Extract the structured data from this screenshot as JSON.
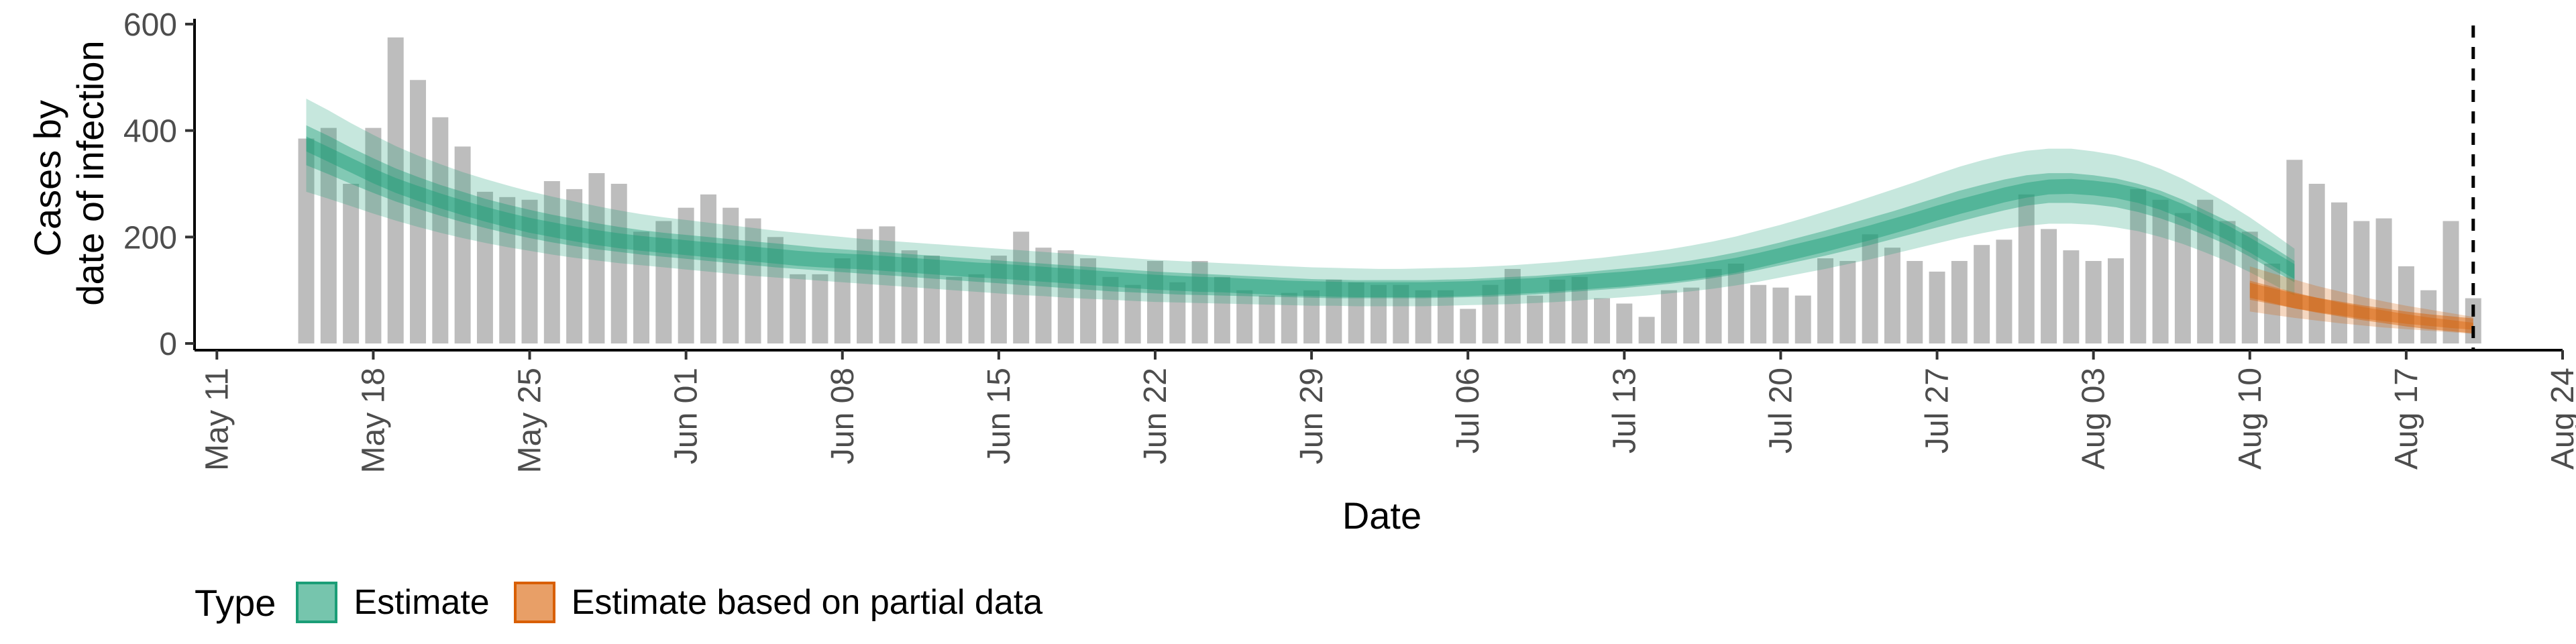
{
  "colors": {
    "bars": "#bdbdbd",
    "estimate": "#1b9e77",
    "partial": "#d95f02"
  },
  "chart_data": {
    "type": "bar",
    "title": "",
    "xlabel": "Date",
    "ylabel_lines": [
      "Cases by",
      "date of infection"
    ],
    "ylim": [
      0,
      610
    ],
    "yticks": [
      0,
      200,
      400,
      600
    ],
    "xlim": [
      "2020-05-10",
      "2020-08-24"
    ],
    "xtick_dates": [
      "2020-05-11",
      "2020-05-18",
      "2020-05-25",
      "2020-06-01",
      "2020-06-08",
      "2020-06-15",
      "2020-06-22",
      "2020-06-29",
      "2020-07-06",
      "2020-07-13",
      "2020-07-20",
      "2020-07-27",
      "2020-08-03",
      "2020-08-10",
      "2020-08-17",
      "2020-08-24"
    ],
    "xtick_labels": [
      "May 11",
      "May 18",
      "May 25",
      "Jun 01",
      "Jun 08",
      "Jun 15",
      "Jun 22",
      "Jun 29",
      "Jul 06",
      "Jul 13",
      "Jul 20",
      "Jul 27",
      "Aug 03",
      "Aug 10",
      "Aug 17",
      "Aug 24"
    ],
    "vline_date": "2020-08-20",
    "bar_start_date": "2020-05-15",
    "bar_values": [
      385,
      405,
      300,
      405,
      575,
      495,
      425,
      370,
      285,
      275,
      270,
      305,
      290,
      320,
      300,
      210,
      230,
      255,
      280,
      255,
      235,
      200,
      130,
      130,
      160,
      215,
      220,
      175,
      165,
      125,
      130,
      165,
      210,
      180,
      175,
      160,
      125,
      110,
      155,
      115,
      155,
      125,
      100,
      90,
      95,
      100,
      120,
      115,
      110,
      110,
      100,
      100,
      65,
      110,
      140,
      90,
      120,
      125,
      85,
      75,
      50,
      100,
      105,
      140,
      150,
      110,
      105,
      90,
      160,
      155,
      205,
      180,
      155,
      135,
      155,
      185,
      195,
      280,
      215,
      175,
      155,
      160,
      290,
      270,
      245,
      270,
      230,
      210,
      150,
      345,
      300,
      265,
      230,
      235,
      145,
      100,
      230,
      85
    ],
    "series": [
      {
        "name": "Estimate",
        "start_date": "2020-05-15",
        "median": [
          375,
          355,
          335,
          315,
          297,
          282,
          268,
          255,
          243,
          232,
          222,
          214,
          206,
          199,
          193,
          188,
          184,
          180,
          176,
          172,
          168,
          164,
          160,
          157,
          155,
          153,
          150,
          147,
          144,
          141,
          138,
          136,
          133,
          130,
          127,
          124,
          121,
          118,
          115,
          113,
          111,
          110,
          108,
          106,
          104,
          103,
          102,
          101,
          101,
          101,
          101,
          102,
          103,
          105,
          107,
          109,
          112,
          115,
          118,
          121,
          125,
          129,
          134,
          140,
          147,
          156,
          166,
          176,
          186,
          197,
          208,
          220,
          232,
          245,
          257,
          268,
          279,
          288,
          294,
          295,
          292,
          287,
          278,
          265,
          248,
          228,
          208,
          185,
          160,
          135
        ],
        "inner_lo": [
          335,
          318,
          300,
          283,
          267,
          253,
          240,
          228,
          217,
          207,
          198,
          190,
          183,
          177,
          172,
          167,
          163,
          159,
          155,
          151,
          147,
          143,
          140,
          137,
          134,
          131,
          128,
          125,
          122,
          119,
          116,
          113,
          110,
          107,
          104,
          101,
          98,
          96,
          94,
          92,
          91,
          90,
          89,
          88,
          87,
          86,
          85,
          85,
          85,
          85,
          85,
          86,
          87,
          88,
          90,
          92,
          95,
          98,
          101,
          104,
          108,
          112,
          117,
          123,
          130,
          138,
          147,
          156,
          165,
          175,
          185,
          196,
          207,
          218,
          229,
          240,
          250,
          259,
          264,
          264,
          261,
          256,
          247,
          235,
          220,
          203,
          185,
          163,
          139,
          115
        ],
        "inner_hi": [
          410,
          390,
          368,
          348,
          329,
          313,
          298,
          285,
          272,
          261,
          251,
          242,
          234,
          226,
          219,
          213,
          208,
          204,
          200,
          196,
          192,
          188,
          184,
          180,
          177,
          174,
          171,
          168,
          165,
          162,
          159,
          156,
          153,
          150,
          147,
          144,
          141,
          138,
          135,
          133,
          131,
          129,
          127,
          125,
          123,
          121,
          120,
          119,
          119,
          119,
          119,
          120,
          121,
          123,
          125,
          127,
          130,
          133,
          137,
          141,
          145,
          150,
          156,
          163,
          171,
          180,
          190,
          201,
          212,
          224,
          236,
          248,
          261,
          274,
          287,
          298,
          308,
          316,
          320,
          320,
          316,
          310,
          300,
          287,
          270,
          250,
          230,
          207,
          182,
          155
        ],
        "outer_lo": [
          285,
          272,
          258,
          244,
          231,
          219,
          208,
          198,
          189,
          181,
          174,
          167,
          161,
          156,
          151,
          147,
          143,
          139,
          135,
          131,
          127,
          124,
          121,
          118,
          115,
          112,
          109,
          106,
          103,
          100,
          97,
          94,
          91,
          89,
          86,
          84,
          82,
          80,
          78,
          77,
          76,
          75,
          74,
          73,
          72,
          71,
          71,
          70,
          70,
          70,
          70,
          71,
          72,
          73,
          74,
          76,
          78,
          81,
          84,
          87,
          90,
          94,
          98,
          103,
          109,
          116,
          124,
          132,
          140,
          149,
          158,
          168,
          178,
          188,
          198,
          207,
          215,
          221,
          225,
          225,
          223,
          218,
          211,
          200,
          187,
          171,
          154,
          134,
          112,
          90
        ],
        "outer_hi": [
          460,
          438,
          414,
          392,
          371,
          353,
          337,
          322,
          309,
          297,
          286,
          276,
          267,
          258,
          250,
          243,
          237,
          232,
          227,
          222,
          217,
          212,
          208,
          204,
          200,
          196,
          193,
          190,
          187,
          184,
          181,
          178,
          175,
          172,
          169,
          166,
          163,
          160,
          157,
          155,
          153,
          151,
          149,
          147,
          145,
          143,
          142,
          141,
          140,
          140,
          141,
          142,
          143,
          145,
          147,
          150,
          153,
          157,
          161,
          166,
          171,
          177,
          184,
          192,
          201,
          212,
          223,
          235,
          248,
          261,
          275,
          289,
          303,
          318,
          332,
          344,
          354,
          362,
          366,
          366,
          361,
          354,
          343,
          328,
          309,
          287,
          263,
          237,
          208,
          178
        ]
      },
      {
        "name": "Estimate based on partial data",
        "start_date": "2020-08-10",
        "median": [
          100,
          90,
          80,
          72,
          65,
          58,
          52,
          46,
          41,
          37,
          33
        ],
        "inner_lo": [
          82,
          74,
          66,
          59,
          53,
          47,
          42,
          37,
          33,
          29,
          26
        ],
        "inner_hi": [
          118,
          107,
          96,
          86,
          77,
          69,
          62,
          55,
          49,
          44,
          39
        ],
        "outer_lo": [
          60,
          54,
          48,
          43,
          38,
          34,
          30,
          27,
          24,
          21,
          18
        ],
        "outer_hi": [
          145,
          132,
          120,
          108,
          98,
          88,
          79,
          71,
          64,
          57,
          50
        ]
      }
    ]
  },
  "legend": {
    "title": "Type",
    "items": [
      {
        "label": "Estimate",
        "color": "#1b9e77"
      },
      {
        "label": "Estimate based on partial data",
        "color": "#d95f02"
      }
    ]
  }
}
